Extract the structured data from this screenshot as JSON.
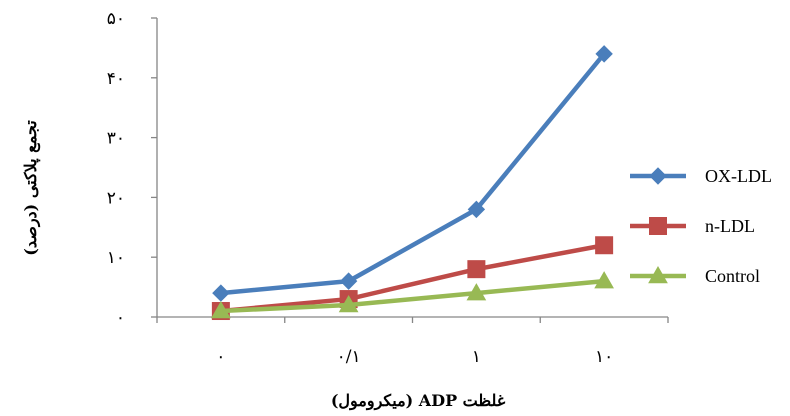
{
  "chart_data": {
    "type": "line",
    "categories": [
      "۰",
      "۰/۱",
      "۱",
      "۱۰"
    ],
    "xlabel": "غلظت ADP (میکرومول)",
    "ylabel": "تجمع پلاکتی (درصد)",
    "ylim": [
      0,
      50
    ],
    "yticks": [
      0,
      10,
      20,
      30,
      40,
      50
    ],
    "ytick_labels": [
      "۰",
      "۱۰",
      "۲۰",
      "۳۰",
      "۴۰",
      "۵۰"
    ],
    "grid": false,
    "legend": "right",
    "series": [
      {
        "name": "OX-LDL",
        "values": [
          4,
          6,
          18,
          44
        ],
        "color": "#4a7ebb",
        "marker": "diamond"
      },
      {
        "name": "n-LDL",
        "values": [
          1,
          3,
          8,
          12
        ],
        "color": "#be4b48",
        "marker": "square"
      },
      {
        "name": "Control",
        "values": [
          1,
          2,
          4,
          6
        ],
        "color": "#98b954",
        "marker": "triangle"
      }
    ]
  }
}
